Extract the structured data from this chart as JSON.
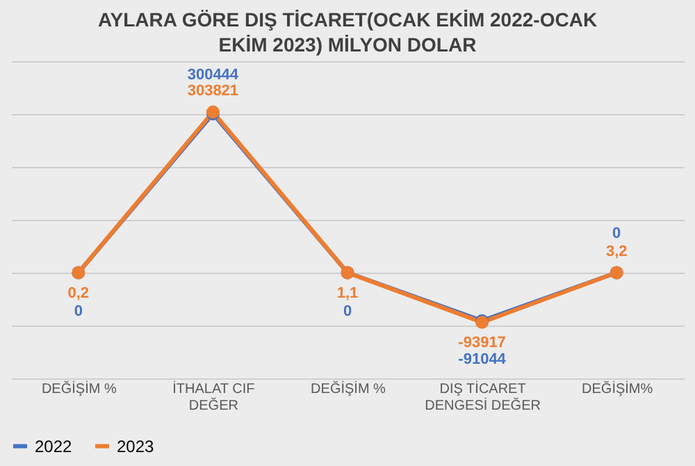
{
  "chart_data": {
    "type": "line",
    "title": "AYLARA GÖRE DIŞ TİCARET(OCAK EKİM 2022-OCAK EKİM 2023) MİLYON DOLAR",
    "categories": [
      "DEĞİŞİM %",
      "İTHALAT CIF DEĞER",
      "DEĞİŞİM %",
      "DIŞ TİCARET DENGESİ DEĞER",
      "DEĞİŞİM%"
    ],
    "series": [
      {
        "name": "2022",
        "color": "#4472c4",
        "values": [
          0,
          300444,
          0,
          -91044,
          0
        ],
        "value_labels": [
          "0",
          "300444",
          "0",
          "-91044",
          "0"
        ]
      },
      {
        "name": "2023",
        "color": "#ed7d31",
        "values": [
          0.2,
          303821,
          1.1,
          -93917,
          3.2
        ],
        "value_labels": [
          "0,2",
          "303821",
          "1,1",
          "-93917",
          "3,2"
        ]
      }
    ],
    "tick_labels": "x",
    "grid": "y",
    "legend": "bottom",
    "marker": "circle",
    "line_style": "solid"
  }
}
